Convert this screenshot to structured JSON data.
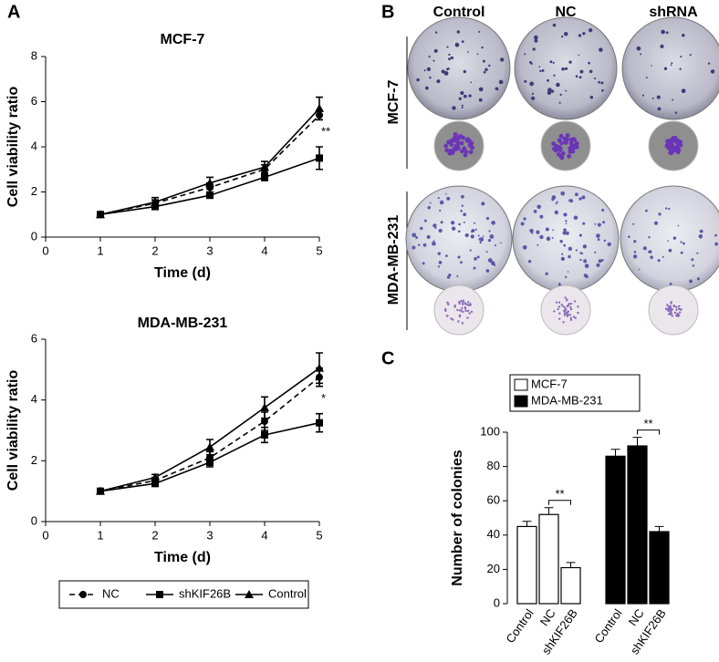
{
  "panel_labels": [
    "A",
    "B",
    "C"
  ],
  "panel_b": {
    "columns": [
      "Control",
      "NC",
      "shRNA"
    ],
    "rows": [
      "MCF-7",
      "MDA-MB-231"
    ]
  },
  "chart_data": [
    {
      "type": "line",
      "title": "MCF-7",
      "x_label": "Time (d)",
      "y_label": "Cell viability  ratio",
      "x": [
        1,
        2,
        3,
        4,
        5
      ],
      "xlim": [
        0,
        5
      ],
      "xticks": [
        0,
        1,
        2,
        3,
        4,
        5
      ],
      "ylim": [
        0,
        8
      ],
      "yticks": [
        0,
        2,
        4,
        6,
        8
      ],
      "annotation": "**",
      "series": [
        {
          "color": "#000000",
          "marker": "circle",
          "dashed": true,
          "values": [
            1,
            1.5,
            2.2,
            3.0,
            5.4
          ],
          "errors": [
            0.05,
            0.15,
            0.2,
            0.2,
            0.2
          ]
        },
        {
          "color": "#000000",
          "marker": "square",
          "dashed": false,
          "values": [
            1,
            1.35,
            1.85,
            2.65,
            3.5
          ],
          "errors": [
            0.05,
            0.1,
            0.1,
            0.15,
            0.5
          ]
        },
        {
          "color": "#000000",
          "marker": "triangle",
          "dashed": false,
          "values": [
            1,
            1.55,
            2.4,
            3.1,
            5.7
          ],
          "errors": [
            0.05,
            0.2,
            0.25,
            0.25,
            0.5
          ]
        }
      ]
    },
    {
      "type": "line",
      "title": "MDA-MB-231",
      "x_label": "Time (d)",
      "y_label": "Cell viability  ratio",
      "x": [
        1,
        2,
        3,
        4,
        5
      ],
      "xlim": [
        0,
        5
      ],
      "xticks": [
        0,
        1,
        2,
        3,
        4,
        5
      ],
      "ylim": [
        0,
        6
      ],
      "yticks": [
        0,
        2,
        4,
        6
      ],
      "annotation": "*",
      "series": [
        {
          "name": "NC",
          "color": "#000000",
          "marker": "circle",
          "dashed": true,
          "values": [
            1,
            1.35,
            2.1,
            3.3,
            4.75
          ],
          "errors": [
            0.05,
            0.1,
            0.2,
            0.3,
            0.3
          ]
        },
        {
          "name": "shKIF26B",
          "color": "#000000",
          "marker": "square",
          "dashed": false,
          "values": [
            1,
            1.25,
            1.95,
            2.85,
            3.25
          ],
          "errors": [
            0.05,
            0.08,
            0.15,
            0.25,
            0.3
          ]
        },
        {
          "name": "Control",
          "color": "#000000",
          "marker": "triangle",
          "dashed": false,
          "values": [
            1,
            1.45,
            2.45,
            3.75,
            5.05
          ],
          "errors": [
            0.05,
            0.1,
            0.25,
            0.35,
            0.5
          ]
        }
      ]
    },
    {
      "type": "bar",
      "y_label": "Number of colonies",
      "categories": [
        "Control",
        "NC",
        "shKIF26B"
      ],
      "ylim": [
        0,
        100
      ],
      "yticks": [
        0,
        20,
        40,
        60,
        80,
        100
      ],
      "significance": [
        "**",
        "**"
      ],
      "series": [
        {
          "name": "MCF-7",
          "color": "#ffffff",
          "values": [
            45,
            52,
            21
          ],
          "errors": [
            3,
            4,
            3
          ]
        },
        {
          "name": "MDA-MB-231",
          "color": "#000000",
          "values": [
            86,
            92,
            42
          ],
          "errors": [
            4,
            5,
            3
          ]
        }
      ]
    }
  ]
}
